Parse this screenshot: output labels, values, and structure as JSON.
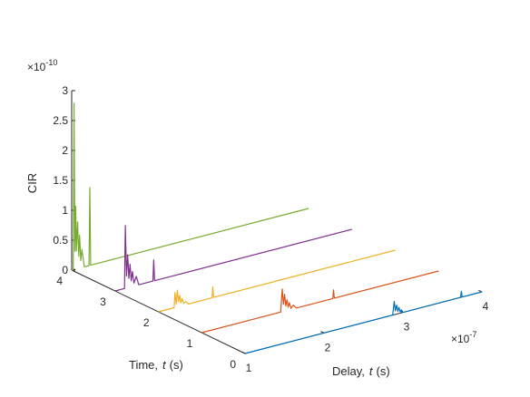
{
  "chart_data": {
    "type": "line",
    "title": "",
    "xlabel": "Delay,",
    "xlabel_var": "t",
    "xlabel_unit": "(s)",
    "ylabel": "Time,",
    "ylabel_var": "t",
    "ylabel_unit": "(s)",
    "zlabel": "CIR",
    "x_multiplier": "×10",
    "x_exponent": "-7",
    "z_multiplier": "×10",
    "z_exponent": "-10",
    "xlim": [
      1,
      4
    ],
    "ylim": [
      0,
      4
    ],
    "zlim": [
      0,
      3
    ],
    "x_ticks": [
      "1",
      "2",
      "3",
      "4"
    ],
    "y_ticks": [
      "0",
      "1",
      "2",
      "3",
      "4"
    ],
    "z_ticks": [
      "0",
      "0.5",
      "1",
      "1.5",
      "2",
      "2.5",
      "3"
    ],
    "grid": false,
    "series": [
      {
        "color": "#0072BD",
        "time": 0,
        "points": [
          [
            1.0,
            0
          ],
          [
            2.87,
            0
          ],
          [
            2.89,
            0.22
          ],
          [
            2.905,
            0.06
          ],
          [
            2.92,
            0.15
          ],
          [
            2.935,
            0.04
          ],
          [
            2.95,
            0.1
          ],
          [
            2.965,
            0.02
          ],
          [
            2.98,
            0.05
          ],
          [
            3.0,
            0
          ],
          [
            3.73,
            0
          ],
          [
            3.74,
            0.1
          ],
          [
            3.75,
            0
          ],
          [
            4.0,
            0
          ]
        ]
      },
      {
        "color": "#D95319",
        "time": 1,
        "points": [
          [
            1.0,
            0
          ],
          [
            2.0,
            0
          ],
          [
            2.02,
            0.38
          ],
          [
            2.035,
            0.12
          ],
          [
            2.05,
            0.28
          ],
          [
            2.065,
            0.08
          ],
          [
            2.08,
            0.18
          ],
          [
            2.095,
            0.05
          ],
          [
            2.11,
            0.12
          ],
          [
            2.13,
            0.02
          ],
          [
            2.16,
            0.06
          ],
          [
            2.2,
            0
          ],
          [
            2.66,
            0
          ],
          [
            2.67,
            0.14
          ],
          [
            2.68,
            0
          ],
          [
            4.0,
            0
          ]
        ]
      },
      {
        "color": "#EDB120",
        "time": 2,
        "points": [
          [
            1.0,
            0
          ],
          [
            1.2,
            0
          ],
          [
            1.21,
            0.25
          ],
          [
            1.225,
            0.05
          ],
          [
            1.24,
            0.28
          ],
          [
            1.255,
            0.08
          ],
          [
            1.27,
            0.18
          ],
          [
            1.285,
            0.05
          ],
          [
            1.3,
            0.12
          ],
          [
            1.32,
            0.03
          ],
          [
            1.35,
            0.05
          ],
          [
            1.38,
            0
          ],
          [
            1.68,
            0
          ],
          [
            1.69,
            0.18
          ],
          [
            1.7,
            0
          ],
          [
            4.0,
            0
          ]
        ]
      },
      {
        "color": "#7E2F8E",
        "time": 3,
        "points": [
          [
            1.0,
            0
          ],
          [
            1.12,
            0
          ],
          [
            1.13,
            1.05
          ],
          [
            1.145,
            0.2
          ],
          [
            1.16,
            0.55
          ],
          [
            1.175,
            0.15
          ],
          [
            1.19,
            0.38
          ],
          [
            1.205,
            0.1
          ],
          [
            1.22,
            0.25
          ],
          [
            1.24,
            0.05
          ],
          [
            1.27,
            0.15
          ],
          [
            1.3,
            0
          ],
          [
            1.48,
            0
          ],
          [
            1.49,
            0.35
          ],
          [
            1.5,
            0
          ],
          [
            4.0,
            0
          ]
        ]
      },
      {
        "color": "#77AC30",
        "time": 4,
        "points": [
          [
            1.0,
            0
          ],
          [
            1.02,
            0
          ],
          [
            1.03,
            2.78
          ],
          [
            1.04,
            0.3
          ],
          [
            1.05,
            1.05
          ],
          [
            1.06,
            0.3
          ],
          [
            1.075,
            0.78
          ],
          [
            1.09,
            0.2
          ],
          [
            1.1,
            0.55
          ],
          [
            1.115,
            0.12
          ],
          [
            1.13,
            0.3
          ],
          [
            1.16,
            0
          ],
          [
            1.22,
            0
          ],
          [
            1.23,
            1.3
          ],
          [
            1.24,
            0
          ],
          [
            4.0,
            0
          ]
        ]
      }
    ]
  }
}
